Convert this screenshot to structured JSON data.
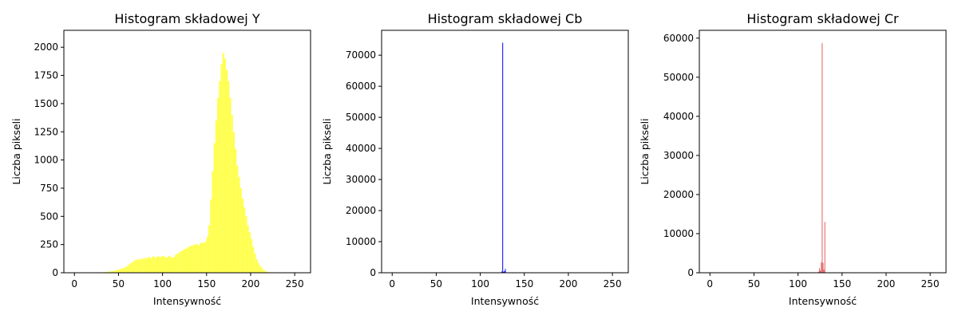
{
  "chart_data": [
    {
      "type": "bar",
      "title": "Histogram składowej Y",
      "xlabel": "Intensywność",
      "ylabel": "Liczba pikseli",
      "xlim": [
        -12,
        268
      ],
      "ylim": [
        0,
        2150
      ],
      "xticks": [
        0,
        50,
        100,
        150,
        200,
        250
      ],
      "yticks": [
        0,
        250,
        500,
        750,
        1000,
        1250,
        1500,
        1750,
        2000
      ],
      "color": "#ffff00",
      "grid": false,
      "x": [
        0,
        2,
        4,
        6,
        8,
        10,
        12,
        14,
        16,
        18,
        20,
        22,
        24,
        26,
        28,
        30,
        32,
        34,
        36,
        38,
        40,
        42,
        44,
        46,
        48,
        50,
        52,
        54,
        56,
        58,
        60,
        62,
        64,
        66,
        68,
        70,
        72,
        74,
        76,
        78,
        80,
        82,
        84,
        86,
        88,
        90,
        92,
        94,
        96,
        98,
        100,
        102,
        104,
        106,
        108,
        110,
        112,
        114,
        116,
        118,
        120,
        122,
        124,
        126,
        128,
        130,
        132,
        134,
        136,
        138,
        140,
        142,
        144,
        146,
        148,
        150,
        152,
        154,
        156,
        158,
        160,
        162,
        164,
        166,
        168,
        170,
        172,
        174,
        176,
        178,
        180,
        182,
        184,
        186,
        188,
        190,
        192,
        194,
        196,
        198,
        200,
        202,
        204,
        206,
        208,
        210,
        212,
        214,
        216,
        218,
        220,
        222,
        224,
        226,
        228,
        230,
        232,
        234,
        236,
        238,
        240,
        242,
        244,
        246,
        248,
        250,
        252,
        254
      ],
      "values": [
        0,
        0,
        0,
        0,
        0,
        0,
        0,
        0,
        0,
        0,
        0,
        0,
        0,
        2,
        3,
        4,
        5,
        6,
        8,
        10,
        12,
        15,
        18,
        20,
        25,
        30,
        35,
        40,
        45,
        55,
        65,
        80,
        90,
        100,
        110,
        120,
        115,
        125,
        120,
        130,
        125,
        135,
        140,
        130,
        145,
        140,
        135,
        150,
        140,
        145,
        150,
        140,
        135,
        150,
        145,
        130,
        140,
        160,
        170,
        180,
        190,
        200,
        210,
        215,
        225,
        235,
        240,
        245,
        250,
        255,
        245,
        260,
        270,
        265,
        280,
        320,
        420,
        650,
        900,
        1150,
        1350,
        1550,
        1700,
        1850,
        1950,
        1900,
        1800,
        1700,
        1550,
        1400,
        1250,
        1100,
        950,
        850,
        750,
        660,
        580,
        500,
        420,
        360,
        300,
        230,
        170,
        120,
        85,
        60,
        40,
        25,
        15,
        8,
        3,
        1,
        0,
        0,
        0,
        0,
        0,
        0,
        0,
        0,
        0,
        0,
        0,
        0,
        0,
        0,
        0,
        0
      ]
    },
    {
      "type": "bar",
      "title": "Histogram składowej Cb",
      "xlabel": "Intensywność",
      "ylabel": "Liczba pikseli",
      "xlim": [
        -12,
        268
      ],
      "ylim": [
        0,
        78000
      ],
      "xticks": [
        0,
        50,
        100,
        150,
        200,
        250
      ],
      "yticks": [
        0,
        10000,
        20000,
        30000,
        40000,
        50000,
        60000,
        70000
      ],
      "color": "#0000ff",
      "grid": false,
      "x": [
        123,
        124,
        125,
        126,
        127,
        128
      ],
      "values": [
        150,
        400,
        74000,
        300,
        500,
        1200
      ]
    },
    {
      "type": "bar",
      "title": "Histogram składowej Cr",
      "xlabel": "Intensywność",
      "ylabel": "Liczba pikseli",
      "xlim": [
        -12,
        268
      ],
      "ylim": [
        0,
        62000
      ],
      "xticks": [
        0,
        50,
        100,
        150,
        200,
        250
      ],
      "yticks": [
        0,
        10000,
        20000,
        30000,
        40000,
        50000,
        60000
      ],
      "color": "#e06060",
      "grid": false,
      "x": [
        123,
        124,
        125,
        126,
        127,
        128,
        129,
        130
      ],
      "values": [
        300,
        1200,
        600,
        2700,
        58700,
        2500,
        800,
        13000
      ]
    }
  ]
}
